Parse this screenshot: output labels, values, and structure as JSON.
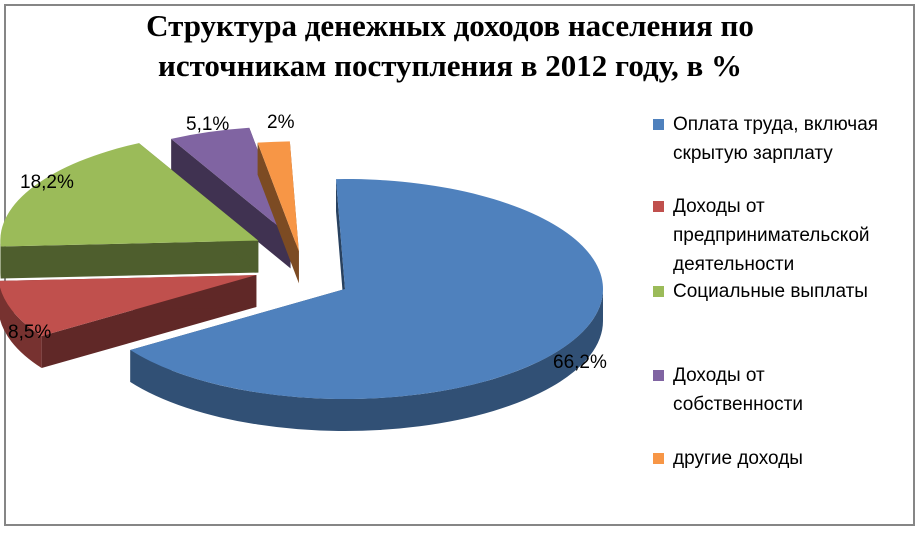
{
  "chart_data": {
    "type": "pie",
    "title_lines": [
      "Структура денежных доходов населения по",
      "источникам поступления в 2012 году, в %"
    ],
    "categories": [
      "Оплата труда, включая скрытую зарплату",
      "Доходы от предпринимательской деятельности",
      "Социальные выплаты",
      "Доходы от собственности",
      "другие доходы"
    ],
    "legend_lines": [
      [
        "Оплата труда, включая",
        "скрытую зарплату"
      ],
      [
        "Доходы от",
        "предпринимательской",
        "деятельности"
      ],
      [
        "Социальные выплаты"
      ],
      [
        "Доходы от",
        "собственности"
      ],
      [
        "другие доходы"
      ]
    ],
    "values": [
      66.2,
      8.5,
      18.2,
      5.1,
      2.0
    ],
    "data_labels": [
      "66,2%",
      "8,5%",
      "18,2%",
      "5,1%",
      "2%"
    ],
    "colors": [
      "#4f81bd",
      "#c0504d",
      "#9bbb59",
      "#8064a2",
      "#f79646"
    ],
    "exploded": true,
    "style": "3d",
    "legend_position": "right"
  }
}
